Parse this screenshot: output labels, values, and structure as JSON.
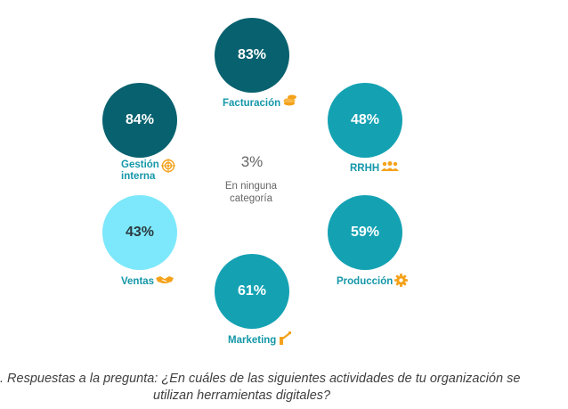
{
  "center": {
    "value": "3%",
    "label_line1": "En ninguna",
    "label_line2": "categoría"
  },
  "bubbles": [
    {
      "id": "facturacion",
      "value": "83%",
      "label": "Facturación",
      "color": "#08616e",
      "icon": "coins-icon"
    },
    {
      "id": "gestion",
      "value": "84%",
      "label_line1": "Gestión",
      "label_line2": "interna",
      "color": "#08616e",
      "icon": "target-icon"
    },
    {
      "id": "rrhh",
      "value": "48%",
      "label": "RRHH",
      "color": "#14a2b3",
      "icon": "people-icon"
    },
    {
      "id": "ventas",
      "value": "43%",
      "label": "Ventas",
      "color": "#7de8fb",
      "icon": "handshake-icon"
    },
    {
      "id": "produccion",
      "value": "59%",
      "label": "Producción",
      "color": "#14a2b3",
      "icon": "gear-icon"
    },
    {
      "id": "marketing",
      "value": "61%",
      "label": "Marketing",
      "color": "#14a2b3",
      "icon": "megaphone-icon"
    }
  ],
  "colors": {
    "label": "#1497a8",
    "icon": "#f4a21b",
    "center_text": "#666666"
  },
  "caption": {
    "line1": ". Respuestas a la pregunta: ¿En cuáles de las siguientes actividades de tu organización se",
    "line2": "utilizan herramientas digitales?"
  }
}
